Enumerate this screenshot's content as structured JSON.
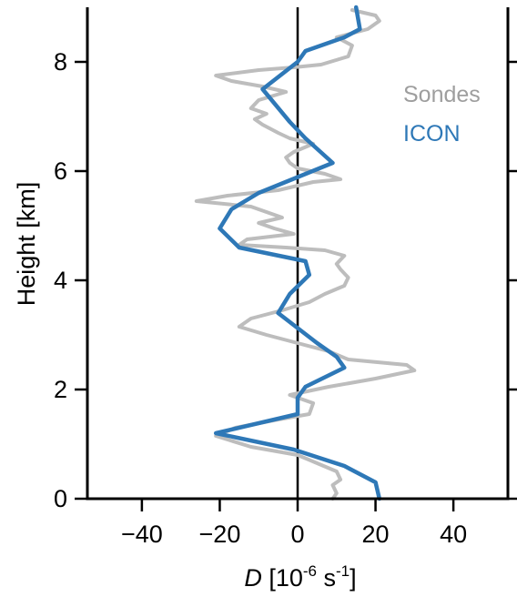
{
  "chart_data": {
    "type": "line",
    "xlabel_var": "D",
    "xlabel_unit_open": " [10",
    "xlabel_unit_exp1": "-6",
    "xlabel_unit_mid": " s",
    "xlabel_unit_exp2": "-1",
    "xlabel_unit_close": "]",
    "ylabel": "Height [km]",
    "xlim": [
      -54,
      54
    ],
    "ylim": [
      0,
      9
    ],
    "xticks": [
      -40,
      -20,
      0,
      20,
      40
    ],
    "xtick_labels": [
      "−40",
      "−20",
      "0",
      "20",
      "40"
    ],
    "yticks": [
      0,
      2,
      4,
      6,
      8
    ],
    "ytick_labels": [
      "0",
      "2",
      "4",
      "6",
      "8"
    ],
    "zero_line": true,
    "legend_position": "upper-right",
    "series": [
      {
        "name": "Sondes",
        "color": "#bdbdbd",
        "points": [
          [
            9,
            0.0
          ],
          [
            10,
            0.1
          ],
          [
            9,
            0.25
          ],
          [
            11,
            0.35
          ],
          [
            10,
            0.5
          ],
          [
            5,
            0.65
          ],
          [
            0,
            0.8
          ],
          [
            -12,
            0.95
          ],
          [
            -21,
            1.15
          ],
          [
            -16,
            1.3
          ],
          [
            -5,
            1.45
          ],
          [
            3,
            1.55
          ],
          [
            4,
            1.75
          ],
          [
            -2,
            1.9
          ],
          [
            8,
            2.05
          ],
          [
            20,
            2.2
          ],
          [
            30,
            2.35
          ],
          [
            28,
            2.45
          ],
          [
            13,
            2.55
          ],
          [
            8,
            2.7
          ],
          [
            0,
            2.85
          ],
          [
            -8,
            3.0
          ],
          [
            -15,
            3.15
          ],
          [
            -12,
            3.3
          ],
          [
            -4,
            3.45
          ],
          [
            3,
            3.6
          ],
          [
            7,
            3.75
          ],
          [
            12,
            3.9
          ],
          [
            13,
            4.05
          ],
          [
            11,
            4.2
          ],
          [
            10,
            4.3
          ],
          [
            12,
            4.45
          ],
          [
            7,
            4.55
          ],
          [
            -3,
            4.6
          ],
          [
            -15,
            4.65
          ],
          [
            -13,
            4.75
          ],
          [
            -1,
            4.85
          ],
          [
            -6,
            4.95
          ],
          [
            -10,
            5.05
          ],
          [
            -4,
            5.15
          ],
          [
            -8,
            5.25
          ],
          [
            -12,
            5.35
          ],
          [
            -26,
            5.45
          ],
          [
            -18,
            5.55
          ],
          [
            -5,
            5.65
          ],
          [
            4,
            5.8
          ],
          [
            11,
            5.85
          ],
          [
            7,
            5.95
          ],
          [
            0,
            6.05
          ],
          [
            -2,
            6.15
          ],
          [
            -3,
            6.25
          ],
          [
            -1,
            6.35
          ],
          [
            4,
            6.5
          ],
          [
            -2,
            6.6
          ],
          [
            -5,
            6.7
          ],
          [
            -9,
            6.85
          ],
          [
            -11,
            6.95
          ],
          [
            -8,
            7.05
          ],
          [
            -12,
            7.15
          ],
          [
            -10,
            7.3
          ],
          [
            -3,
            7.45
          ],
          [
            -9,
            7.55
          ],
          [
            -17,
            7.65
          ],
          [
            -21,
            7.75
          ],
          [
            -10,
            7.85
          ],
          [
            -1,
            7.9
          ],
          [
            6,
            7.95
          ],
          [
            13,
            8.1
          ],
          [
            14,
            8.3
          ],
          [
            10,
            8.45
          ],
          [
            18,
            8.6
          ],
          [
            21,
            8.75
          ],
          [
            20,
            8.85
          ],
          [
            14,
            8.95
          ]
        ]
      },
      {
        "name": "ICON",
        "color": "#2e78b7",
        "points": [
          [
            21,
            0.0
          ],
          [
            20,
            0.3
          ],
          [
            12,
            0.6
          ],
          [
            -1,
            0.9
          ],
          [
            -21,
            1.2
          ],
          [
            0,
            1.55
          ],
          [
            0,
            1.85
          ],
          [
            2,
            2.05
          ],
          [
            12,
            2.4
          ],
          [
            10,
            2.6
          ],
          [
            5,
            2.85
          ],
          [
            -5,
            3.4
          ],
          [
            -2,
            3.75
          ],
          [
            3,
            4.1
          ],
          [
            2,
            4.35
          ],
          [
            -15,
            4.6
          ],
          [
            -20,
            4.95
          ],
          [
            -17,
            5.3
          ],
          [
            -10,
            5.6
          ],
          [
            9,
            6.15
          ],
          [
            2,
            6.6
          ],
          [
            -2,
            6.9
          ],
          [
            -9,
            7.5
          ],
          [
            0,
            8.0
          ],
          [
            2,
            8.2
          ],
          [
            6,
            8.3
          ],
          [
            12,
            8.45
          ],
          [
            16,
            8.6
          ],
          [
            15,
            9.0
          ]
        ]
      }
    ]
  }
}
